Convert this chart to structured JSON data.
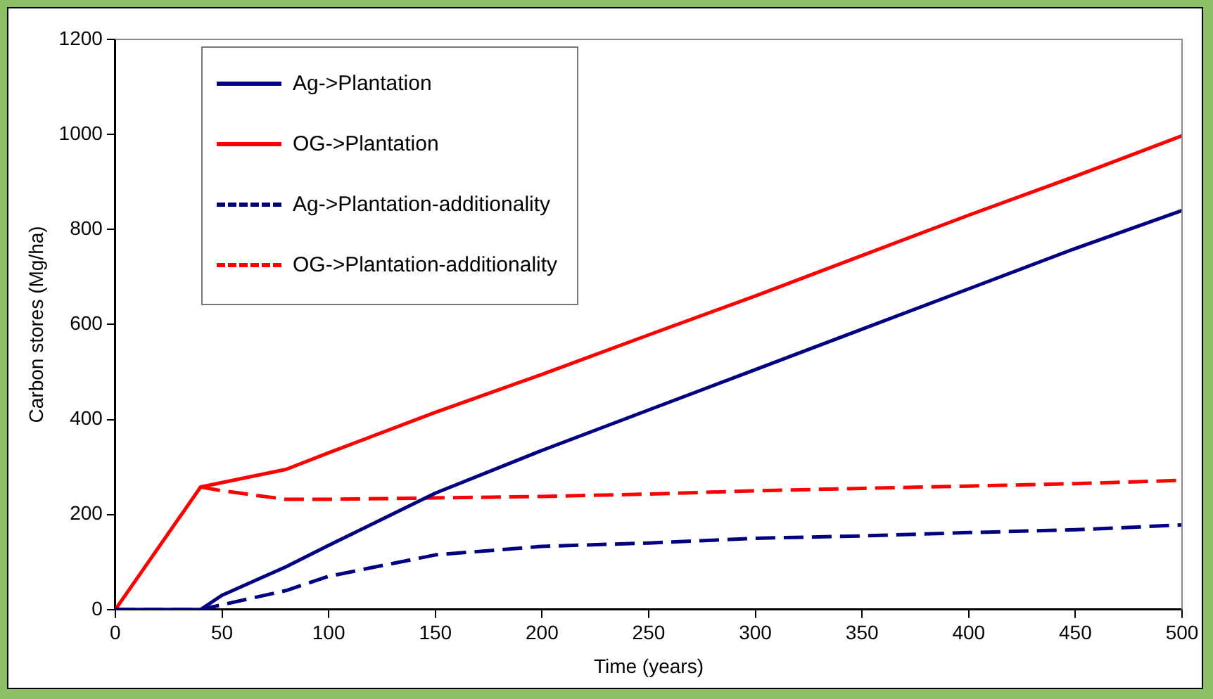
{
  "chart_data": {
    "type": "line",
    "xlabel": "Time (years)",
    "ylabel": "Carbon stores (Mg/ha)",
    "xlim": [
      0,
      500
    ],
    "xticks": [
      0,
      50,
      100,
      150,
      200,
      250,
      300,
      350,
      400,
      450,
      500
    ],
    "ylim": [
      0,
      1200
    ],
    "yticks": [
      0,
      200,
      400,
      600,
      800,
      1000,
      1200
    ],
    "legend": "top left",
    "grid": false,
    "marker": "none",
    "series": [
      {
        "name": "Ag->Plantation",
        "color": "#000080",
        "line_style": "solid",
        "x": [
          0,
          40,
          50,
          80,
          100,
          150,
          200,
          250,
          300,
          350,
          400,
          450,
          500
        ],
        "values": [
          0,
          0,
          30,
          90,
          135,
          245,
          335,
          420,
          505,
          590,
          675,
          760,
          840
        ]
      },
      {
        "name": "OG->Plantation",
        "color": "#ff0000",
        "line_style": "solid",
        "x": [
          0,
          40,
          80,
          100,
          150,
          200,
          250,
          300,
          350,
          400,
          450,
          500
        ],
        "values": [
          0,
          258,
          295,
          330,
          415,
          495,
          578,
          660,
          745,
          830,
          912,
          997
        ]
      },
      {
        "name": "Ag->Plantation-additionality",
        "color": "#000080",
        "line_style": "dashed",
        "x": [
          0,
          40,
          50,
          80,
          100,
          150,
          200,
          250,
          300,
          350,
          400,
          450,
          500
        ],
        "values": [
          0,
          0,
          10,
          40,
          70,
          115,
          133,
          140,
          150,
          155,
          162,
          168,
          178
        ]
      },
      {
        "name": "OG->Plantation-additionality",
        "color": "#ff0000",
        "line_style": "dashed",
        "x": [
          40,
          50,
          80,
          100,
          150,
          200,
          250,
          300,
          350,
          400,
          450,
          500
        ],
        "values": [
          258,
          250,
          232,
          232,
          235,
          238,
          243,
          250,
          255,
          260,
          265,
          272
        ]
      }
    ]
  }
}
